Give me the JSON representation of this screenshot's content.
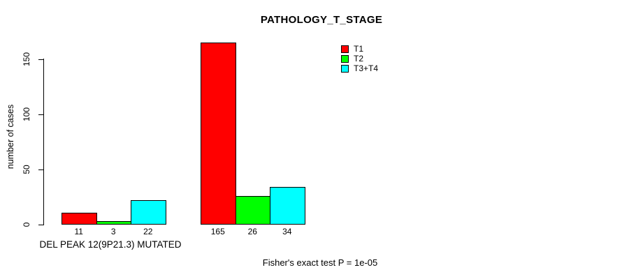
{
  "page": {
    "background_color": "#ffffff",
    "text_color": "#000000"
  },
  "chart_data": {
    "type": "bar",
    "title": "PATHOLOGY_T_STAGE",
    "xlabel": "",
    "ylabel": "number of cases",
    "categories": [
      "DEL PEAK 12(9P21.3) MUTATED",
      ""
    ],
    "series": [
      {
        "name": "T1",
        "color": "#ff0000",
        "values": [
          11,
          165
        ]
      },
      {
        "name": "T2",
        "color": "#00ff00",
        "values": [
          3,
          26
        ]
      },
      {
        "name": "T3+T4",
        "color": "#00ffff",
        "values": [
          22,
          34
        ]
      }
    ],
    "bar_value_labels": [
      [
        "11",
        "3",
        "22"
      ],
      [
        "165",
        "26",
        "34"
      ]
    ],
    "yticks": [
      "0",
      "50",
      "100",
      "150"
    ],
    "ylim": [
      0,
      165
    ],
    "grid": false,
    "bar_border_color": "#000000",
    "legend": {
      "position": "top-right",
      "entries": [
        {
          "label": "T1",
          "color": "#ff0000"
        },
        {
          "label": "T2",
          "color": "#00ff00"
        },
        {
          "label": "T3+T4",
          "color": "#00ffff"
        }
      ]
    },
    "annotation": "Fisher's exact test P = 1e-05"
  }
}
